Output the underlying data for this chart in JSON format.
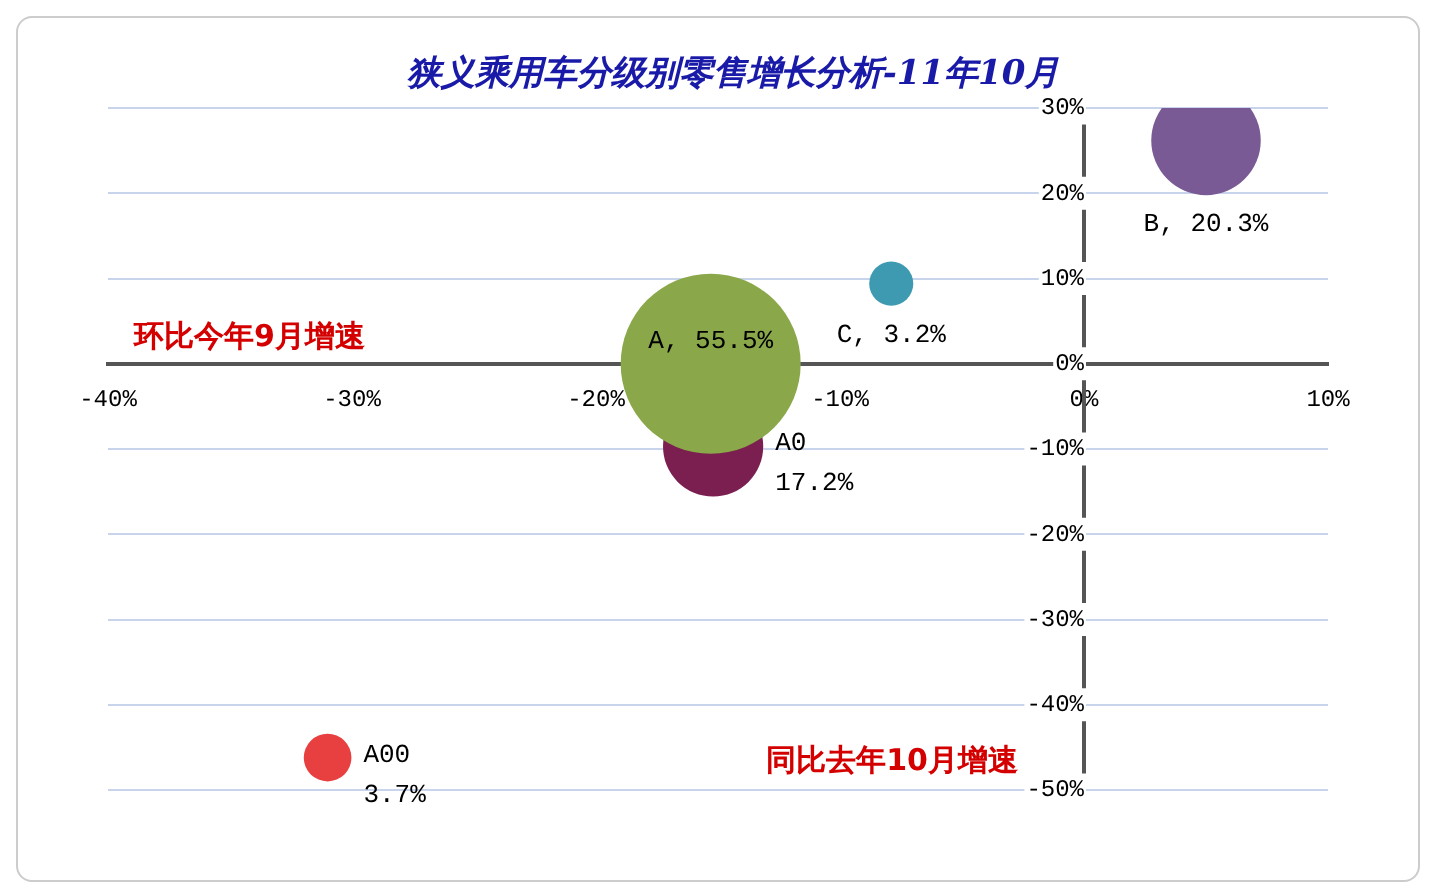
{
  "chart_data": {
    "type": "bubble",
    "title": "狭义乘用车分级别零售增长分析-11年10月",
    "xlabel": "同比去年10月增速",
    "ylabel": "环比今年9月增速",
    "x": [
      5.0,
      -7.9,
      -15.2,
      -15.3,
      -31.0
    ],
    "values": [
      26.2,
      9.4,
      -9.7,
      0,
      -46.2
    ],
    "sizes": [
      0.37,
      0.06,
      0.31,
      1,
      0.07
    ],
    "colors": [
      "#7a5a94",
      "#3d9ab0",
      "#7a1f4f",
      "#8aa84a",
      "#e84040"
    ],
    "annotations": [
      {
        "text": "B, 20.3%",
        "x": 5.0,
        "y": 26.2
      },
      {
        "text": "C, 3.2%",
        "x": -7.9,
        "y": 9.4
      },
      {
        "text": "A0\n17.2%",
        "x": -15.2,
        "y": -9.7
      },
      {
        "text": "A, 55.5%",
        "x": -15.3,
        "y": 0
      },
      {
        "text": "A00\n3.7%",
        "x": -31.0,
        "y": -46.2
      }
    ],
    "xlim": [
      -40,
      10
    ],
    "xticks": [
      {
        "value": -40,
        "label": "-40%"
      },
      {
        "value": -30,
        "label": "-30%"
      },
      {
        "value": -20,
        "label": "-20%"
      },
      {
        "value": -10,
        "label": "-10%"
      },
      {
        "value": 0,
        "label": "0%"
      },
      {
        "value": 10,
        "label": "10%"
      }
    ],
    "ylim": [
      -50,
      30
    ],
    "yticks": [
      {
        "value": -50,
        "label": "-50%"
      },
      {
        "value": -40,
        "label": "-40%"
      },
      {
        "value": -30,
        "label": "-30%"
      },
      {
        "value": -20,
        "label": "-20%"
      },
      {
        "value": -10,
        "label": "-10%"
      },
      {
        "value": 0,
        "label": "0%"
      },
      {
        "value": 10,
        "label": "10%"
      },
      {
        "value": 20,
        "label": "20%"
      },
      {
        "value": 30,
        "label": "30%"
      }
    ],
    "grid": "y"
  }
}
